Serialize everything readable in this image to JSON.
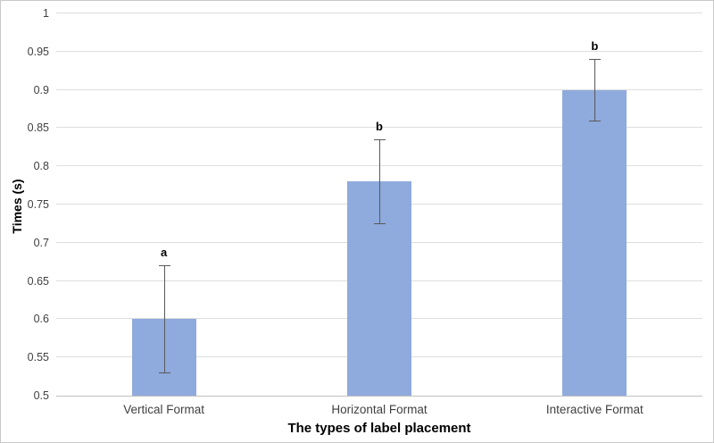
{
  "chart_data": {
    "type": "bar",
    "title": "",
    "xlabel": "The types of label placement",
    "ylabel": "Times (s)",
    "categories": [
      "Vertical Format",
      "Horizontal Format",
      "Interactive Format"
    ],
    "values": [
      0.6,
      0.78,
      0.9
    ],
    "errors": {
      "low": [
        0.53,
        0.725,
        0.86
      ],
      "high": [
        0.67,
        0.835,
        0.94
      ]
    },
    "annotations": [
      "a",
      "b",
      "b"
    ],
    "ylim": [
      0.5,
      1
    ],
    "yticks": [
      0.5,
      0.55,
      0.6,
      0.65,
      0.7,
      0.75,
      0.8,
      0.85,
      0.9,
      0.95,
      1
    ],
    "ytick_labels": [
      "0.5",
      "0.55",
      "0.6",
      "0.65",
      "0.7",
      "0.75",
      "0.8",
      "0.85",
      "0.9",
      "0.95",
      "1"
    ],
    "grid": true,
    "legend": "none",
    "colors": {
      "bar_fill": "#8faadc",
      "error_bar": "#595959",
      "gridline": "#dedede",
      "axis_line": "#bfbfbf",
      "tick_text": "#404040",
      "label_text": "#000000",
      "border": "#c9c9c9"
    }
  }
}
